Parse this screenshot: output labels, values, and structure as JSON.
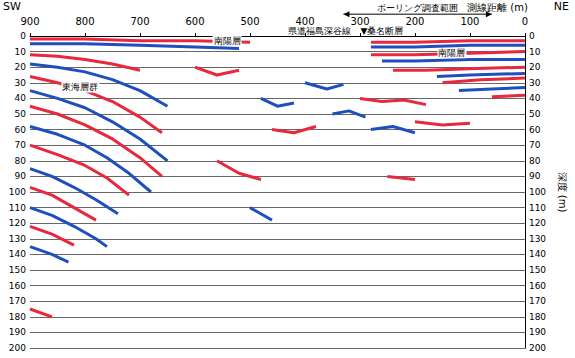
{
  "chart_data": {
    "type": "line",
    "corner_labels": {
      "left": "SW",
      "right": "NE"
    },
    "xlabel": "測線距離 (m)",
    "ylabel": "深度 (m)",
    "xlim": [
      0,
      900
    ],
    "xticks": [
      0,
      100,
      200,
      300,
      400,
      500,
      600,
      700,
      800,
      900
    ],
    "ylim": [
      0,
      200
    ],
    "yticks": [
      0,
      10,
      20,
      30,
      40,
      50,
      60,
      70,
      80,
      90,
      100,
      110,
      120,
      130,
      140,
      150,
      160,
      170,
      180,
      190,
      200
    ],
    "grid": true,
    "annotations": [
      {
        "text": "ボーリング調査範囲",
        "x": [
          330,
          60
        ],
        "y": -14
      },
      {
        "text": "県道福島深谷線",
        "x": 430,
        "y": -3
      },
      {
        "text": "▼桑名断層",
        "x": 299,
        "y": -3
      },
      {
        "text": "南陽層",
        "x": 568,
        "y": 3
      },
      {
        "text": "南陽層",
        "x": 159,
        "y": 11
      },
      {
        "text": "東海層群",
        "x": 843,
        "y": 33
      }
    ],
    "series": [
      {
        "color": "#e8283c",
        "x": [
          0,
          100,
          200,
          280
        ],
        "values": [
          3,
          3,
          4,
          4
        ]
      },
      {
        "color": "#1f4fbf",
        "x": [
          0,
          100,
          200,
          280
        ],
        "values": [
          6,
          6,
          7,
          7
        ]
      },
      {
        "color": "#e8283c",
        "x": [
          0,
          100,
          200,
          280
        ],
        "values": [
          10,
          11,
          12,
          12
        ]
      },
      {
        "color": "#1f4fbf",
        "x": [
          0,
          100,
          200,
          260
        ],
        "values": [
          15,
          15,
          16,
          16
        ]
      },
      {
        "color": "#e8283c",
        "x": [
          0,
          100,
          180,
          240
        ],
        "values": [
          20,
          21,
          22,
          22
        ]
      },
      {
        "color": "#1f4fbf",
        "x": [
          0,
          100,
          160
        ],
        "values": [
          24,
          25,
          26
        ]
      },
      {
        "color": "#e8283c",
        "x": [
          0,
          80,
          150
        ],
        "values": [
          27,
          28,
          30
        ]
      },
      {
        "color": "#1f4fbf",
        "x": [
          0,
          60,
          120
        ],
        "values": [
          33,
          34,
          35
        ]
      },
      {
        "color": "#e8283c",
        "x": [
          0,
          60
        ],
        "values": [
          38,
          39
        ]
      },
      {
        "color": "#e8283c",
        "x": [
          500,
          600,
          700,
          800,
          900
        ],
        "values": [
          4,
          3,
          3,
          2,
          2
        ]
      },
      {
        "color": "#1f4fbf",
        "x": [
          520,
          600,
          700,
          800,
          900
        ],
        "values": [
          8,
          7,
          6,
          5,
          5
        ]
      },
      {
        "color": "#e8283c",
        "x": [
          900,
          850,
          800,
          750,
          700
        ],
        "values": [
          12,
          13,
          15,
          18,
          22
        ]
      },
      {
        "color": "#1f4fbf",
        "x": [
          900,
          850,
          800,
          750,
          700,
          650
        ],
        "values": [
          18,
          20,
          23,
          28,
          35,
          45
        ]
      },
      {
        "color": "#e8283c",
        "x": [
          900,
          850,
          800,
          750,
          700,
          660
        ],
        "values": [
          26,
          30,
          35,
          42,
          52,
          62
        ]
      },
      {
        "color": "#1f4fbf",
        "x": [
          900,
          850,
          800,
          750,
          700,
          650
        ],
        "values": [
          35,
          40,
          46,
          55,
          66,
          80
        ]
      },
      {
        "color": "#e8283c",
        "x": [
          900,
          850,
          800,
          750,
          700,
          660
        ],
        "values": [
          45,
          50,
          57,
          66,
          78,
          90
        ]
      },
      {
        "color": "#1f4fbf",
        "x": [
          900,
          850,
          800,
          760,
          720,
          680
        ],
        "values": [
          58,
          63,
          70,
          78,
          88,
          100
        ]
      },
      {
        "color": "#e8283c",
        "x": [
          900,
          850,
          800,
          760,
          720
        ],
        "values": [
          70,
          76,
          83,
          91,
          102
        ]
      },
      {
        "color": "#1f4fbf",
        "x": [
          900,
          860,
          820,
          780,
          740
        ],
        "values": [
          85,
          90,
          97,
          105,
          114
        ]
      },
      {
        "color": "#e8283c",
        "x": [
          900,
          860,
          820,
          780
        ],
        "values": [
          97,
          102,
          110,
          118
        ]
      },
      {
        "color": "#1f4fbf",
        "x": [
          900,
          860,
          820,
          780,
          760
        ],
        "values": [
          110,
          115,
          122,
          130,
          135
        ]
      },
      {
        "color": "#e8283c",
        "x": [
          900,
          860,
          820
        ],
        "values": [
          122,
          127,
          134
        ]
      },
      {
        "color": "#1f4fbf",
        "x": [
          900,
          860,
          830
        ],
        "values": [
          135,
          140,
          145
        ]
      },
      {
        "color": "#e8283c",
        "x": [
          900,
          860
        ],
        "values": [
          175,
          180
        ]
      },
      {
        "color": "#e8283c",
        "x": [
          600,
          560,
          520
        ],
        "values": [
          20,
          25,
          22
        ]
      },
      {
        "color": "#1f4fbf",
        "x": [
          480,
          450,
          420
        ],
        "values": [
          40,
          45,
          43
        ]
      },
      {
        "color": "#e8283c",
        "x": [
          460,
          420,
          380
        ],
        "values": [
          60,
          62,
          58
        ]
      },
      {
        "color": "#1f4fbf",
        "x": [
          400,
          360,
          330
        ],
        "values": [
          30,
          34,
          31
        ]
      },
      {
        "color": "#e8283c",
        "x": [
          560,
          520,
          480
        ],
        "values": [
          80,
          88,
          92
        ]
      },
      {
        "color": "#1f4fbf",
        "x": [
          350,
          320,
          290
        ],
        "values": [
          50,
          48,
          52
        ]
      },
      {
        "color": "#e8283c",
        "x": [
          300,
          260,
          220,
          180
        ],
        "values": [
          40,
          42,
          41,
          44
        ]
      },
      {
        "color": "#1f4fbf",
        "x": [
          280,
          240,
          200
        ],
        "values": [
          60,
          58,
          62
        ]
      },
      {
        "color": "#e8283c",
        "x": [
          200,
          150,
          100
        ],
        "values": [
          55,
          57,
          56
        ]
      },
      {
        "color": "#1f4fbf",
        "x": [
          500,
          460
        ],
        "values": [
          110,
          118
        ]
      },
      {
        "color": "#e8283c",
        "x": [
          250,
          200
        ],
        "values": [
          90,
          92
        ]
      }
    ]
  }
}
